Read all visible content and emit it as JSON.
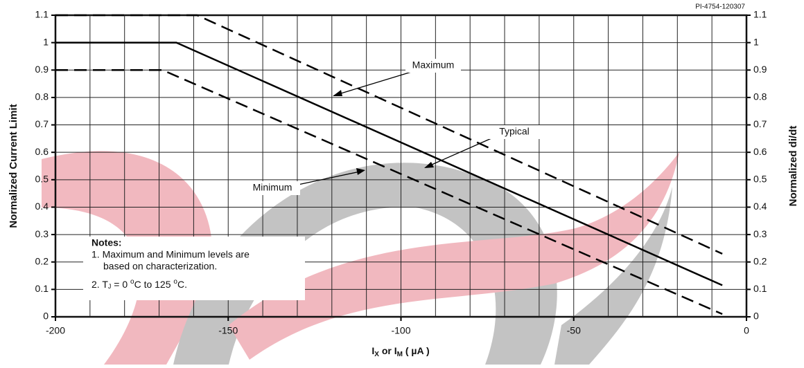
{
  "chart_data": {
    "type": "line",
    "code": "PI-4754-120307",
    "x_label": [
      "I",
      "X",
      " or I",
      "M",
      "  ( µA )"
    ],
    "y_label": "Normalized Current Limit",
    "y2_label": "Normalized di/dt",
    "xlim": [
      -200,
      0
    ],
    "xticks": [
      -200,
      -150,
      -100,
      -50,
      0
    ],
    "xminorticks": [
      -190,
      -180,
      -170,
      -160,
      -140,
      -130,
      -120,
      -110,
      -90,
      -80,
      -70,
      -60,
      -40,
      -30,
      -20,
      -10
    ],
    "ylim": [
      0,
      1.1
    ],
    "yticks": [
      0,
      0.1,
      0.2,
      0.3,
      0.4,
      0.5,
      0.6,
      0.7,
      0.8,
      0.9,
      1,
      1.1
    ],
    "y2lim": [
      0,
      1.1
    ],
    "y2ticks": [
      0,
      0.1,
      0.2,
      0.3,
      0.4,
      0.5,
      0.6,
      0.7,
      0.8,
      0.9,
      1,
      1.1
    ],
    "grid": true,
    "series": [
      {
        "name": "Maximum",
        "color": "#000000",
        "dashed": true,
        "x": [
          -200,
          -159,
          -7
        ],
        "values": [
          1.1,
          1.1,
          0.23
        ]
      },
      {
        "name": "Typical",
        "color": "#000000",
        "dashed": false,
        "x": [
          -200,
          -165,
          -7
        ],
        "values": [
          1,
          1,
          0.115
        ]
      },
      {
        "name": "Minimum",
        "color": "#000000",
        "dashed": true,
        "x": [
          -200,
          -169,
          -7
        ],
        "values": [
          0.9,
          0.9,
          0.01
        ]
      }
    ],
    "notes": {
      "title": "Notes:",
      "lines": [
        "1. Maximum and Minimum levels are",
        "based on characterization."
      ],
      "note2": [
        "2. T",
        "J",
        " = 0 ",
        "o",
        "C to 125  ",
        "o",
        "C."
      ]
    }
  }
}
